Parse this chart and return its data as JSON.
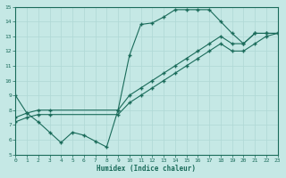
{
  "xlabel": "Humidex (Indice chaleur)",
  "bg_color": "#c5e8e5",
  "line_color": "#1a6b5a",
  "grid_color": "#afd8d5",
  "xlim": [
    0,
    23
  ],
  "ylim": [
    5,
    15
  ],
  "xticks": [
    0,
    1,
    2,
    3,
    4,
    5,
    6,
    7,
    8,
    9,
    10,
    11,
    12,
    13,
    14,
    15,
    16,
    17,
    18,
    19,
    20,
    21,
    22,
    23
  ],
  "yticks": [
    5,
    6,
    7,
    8,
    9,
    10,
    11,
    12,
    13,
    14,
    15
  ],
  "line1_x": [
    0,
    1,
    2,
    3,
    4,
    5,
    6,
    7,
    8,
    9,
    10,
    11,
    12,
    13,
    14,
    15,
    16,
    17,
    18,
    19,
    20,
    21,
    22,
    23
  ],
  "line1_y": [
    9.0,
    7.8,
    7.2,
    6.5,
    5.8,
    6.5,
    6.3,
    5.9,
    5.5,
    8.0,
    11.7,
    13.8,
    13.9,
    14.3,
    14.8,
    14.8,
    14.8,
    14.8,
    14.0,
    13.2,
    12.5,
    13.2,
    13.2,
    13.2
  ],
  "line2_x": [
    0,
    1,
    2,
    3,
    9,
    10,
    11,
    12,
    13,
    14,
    15,
    16,
    17,
    18,
    19,
    20,
    21,
    22,
    23
  ],
  "line2_y": [
    7.5,
    7.8,
    8.0,
    8.0,
    8.0,
    9.0,
    9.5,
    10.0,
    10.5,
    11.0,
    11.5,
    12.0,
    12.5,
    13.0,
    12.5,
    12.5,
    13.2,
    13.2,
    13.2
  ],
  "line3_x": [
    0,
    1,
    2,
    3,
    9,
    10,
    11,
    12,
    13,
    14,
    15,
    16,
    17,
    18,
    19,
    20,
    21,
    22,
    23
  ],
  "line3_y": [
    7.2,
    7.5,
    7.7,
    7.7,
    7.7,
    8.5,
    9.0,
    9.5,
    10.0,
    10.5,
    11.0,
    11.5,
    12.0,
    12.5,
    12.0,
    12.0,
    12.5,
    13.0,
    13.2
  ]
}
